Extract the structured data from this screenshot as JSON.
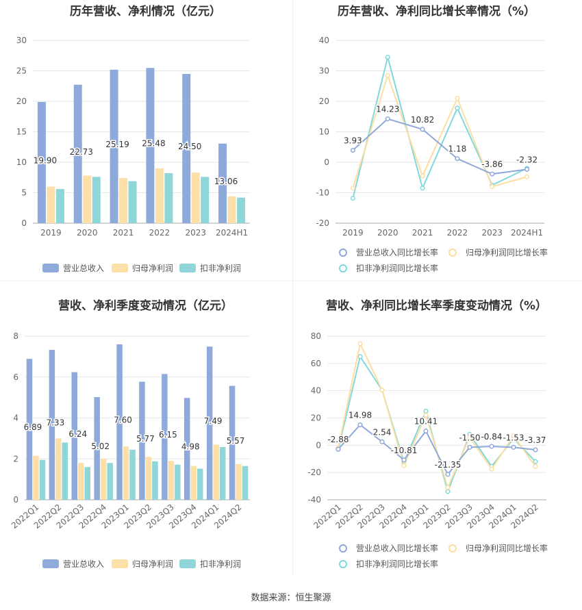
{
  "source": "数据来源：恒生聚源",
  "colors": {
    "revenue": "#8eaadb",
    "parent_profit": "#fde0a8",
    "deducted_profit": "#8fd6d8",
    "revenue_line": "#8fa8da",
    "parent_line": "#fddea0",
    "deducted_line": "#7fd8dc"
  },
  "chart_data": [
    {
      "type": "bar",
      "title": "历年营收、净利情况（亿元）",
      "categories": [
        "2019",
        "2020",
        "2021",
        "2022",
        "2023",
        "2024H1"
      ],
      "ylim": [
        0,
        30
      ],
      "yticks": [
        0,
        5,
        10,
        15,
        20,
        25,
        30
      ],
      "legend": "bottom",
      "series": [
        {
          "name": "营业总收入",
          "values": [
            19.9,
            22.73,
            25.19,
            25.48,
            24.5,
            13.06
          ],
          "labels": [
            "19.90",
            "22.73",
            "25.19",
            "25.48",
            "24.50",
            "13.06"
          ]
        },
        {
          "name": "归母净利润",
          "values": [
            6.0,
            7.8,
            7.4,
            9.0,
            8.3,
            4.4
          ]
        },
        {
          "name": "扣非净利润",
          "values": [
            5.6,
            7.6,
            6.9,
            8.2,
            7.6,
            4.2
          ]
        }
      ]
    },
    {
      "type": "line",
      "title": "历年营收、净利同比增长率情况（%）",
      "categories": [
        "2019",
        "2020",
        "2021",
        "2022",
        "2023",
        "2024H1"
      ],
      "ylim": [
        -20,
        40
      ],
      "yticks": [
        -20,
        -10,
        0,
        10,
        20,
        30,
        40
      ],
      "legend": "bottom",
      "series": [
        {
          "name": "营业总收入同比增长率",
          "values": [
            3.93,
            14.23,
            10.82,
            1.18,
            -3.86,
            -2.32
          ],
          "labels": [
            "3.93",
            "14.23",
            "10.82",
            "1.18",
            "-3.86",
            "-2.32"
          ]
        },
        {
          "name": "归母净利润同比增长率",
          "values": [
            -8.5,
            28.5,
            -4.5,
            21.0,
            -8.0,
            -4.8
          ]
        },
        {
          "name": "扣非净利润同比增长率",
          "values": [
            -11.8,
            34.5,
            -8.5,
            17.8,
            -7.5,
            -2.0
          ]
        }
      ]
    },
    {
      "type": "bar",
      "title": "营收、净利季度变动情况（亿元）",
      "categories": [
        "2022Q1",
        "2022Q2",
        "2022Q3",
        "2022Q4",
        "2023Q1",
        "2023Q2",
        "2023Q3",
        "2023Q4",
        "2024Q1",
        "2024Q2"
      ],
      "ylim": [
        0,
        8
      ],
      "yticks": [
        0,
        2,
        4,
        6,
        8
      ],
      "legend": "bottom",
      "series": [
        {
          "name": "营业总收入",
          "values": [
            6.89,
            7.33,
            6.24,
            5.02,
            7.6,
            5.77,
            6.15,
            4.98,
            7.49,
            5.57
          ],
          "labels": [
            "6.89",
            "7.33",
            "6.24",
            "5.02",
            "7.60",
            "5.77",
            "6.15",
            "4.98",
            "7.49",
            "5.57"
          ]
        },
        {
          "name": "归母净利润",
          "values": [
            2.15,
            3.0,
            1.8,
            2.0,
            2.6,
            2.1,
            1.9,
            1.65,
            2.7,
            1.75
          ]
        },
        {
          "name": "扣非净利润",
          "values": [
            1.95,
            2.8,
            1.6,
            1.8,
            2.45,
            1.88,
            1.72,
            1.52,
            2.58,
            1.65
          ]
        }
      ]
    },
    {
      "type": "line",
      "title": "营收、净利同比增长率季度变动情况（%）",
      "categories": [
        "2022Q1",
        "2022Q2",
        "2022Q3",
        "2022Q4",
        "2023Q1",
        "2023Q2",
        "2023Q3",
        "2023Q4",
        "2024Q1",
        "2024Q2"
      ],
      "ylim": [
        -40,
        80
      ],
      "yticks": [
        -40,
        -20,
        0,
        20,
        40,
        60,
        80
      ],
      "legend": "bottom",
      "series": [
        {
          "name": "营业总收入同比增长率",
          "values": [
            -2.88,
            14.98,
            2.54,
            -10.81,
            10.41,
            -21.35,
            -1.5,
            -0.84,
            -1.53,
            -3.37
          ],
          "labels": [
            "-2.88",
            "14.98",
            "2.54",
            "-10.81",
            "10.41",
            "-21.35",
            "-1.50",
            "-0.84",
            "-1.53",
            "-3.37"
          ]
        },
        {
          "name": "归母净利润同比增长率",
          "values": [
            -2.0,
            74.5,
            40.5,
            -15.0,
            22.0,
            -31.0,
            6.0,
            -17.5,
            7.0,
            -15.5
          ]
        },
        {
          "name": "扣非净利润同比增长率",
          "values": [
            -3.0,
            65.0,
            40.5,
            -12.5,
            25.0,
            -34.0,
            8.0,
            -15.5,
            5.0,
            -12.0
          ]
        }
      ]
    }
  ]
}
